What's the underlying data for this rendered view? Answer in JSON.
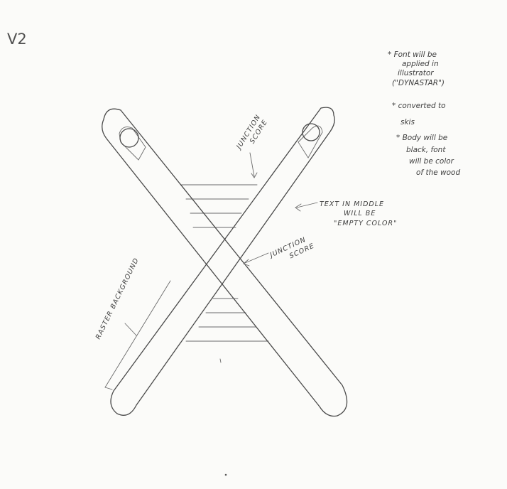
{
  "version_label": "V2",
  "labels": {
    "junction_top": [
      "JUNCTION",
      "SCORE"
    ],
    "junction_mid": [
      "JUNCTION",
      "SCORE"
    ],
    "text_middle": [
      "TEXT IN MIDDLE",
      "WILL BE",
      "\"EMPTY COLOR\""
    ],
    "raster": "RASTER BACKGROUND"
  },
  "notes": [
    [
      "* Font will be",
      "applied in",
      "illustrator",
      "(\"DYNASTAR\")"
    ],
    [
      "* converted to",
      "skis"
    ],
    [
      "* Body will be",
      "black, font",
      "will be color",
      "of the wood"
    ]
  ]
}
